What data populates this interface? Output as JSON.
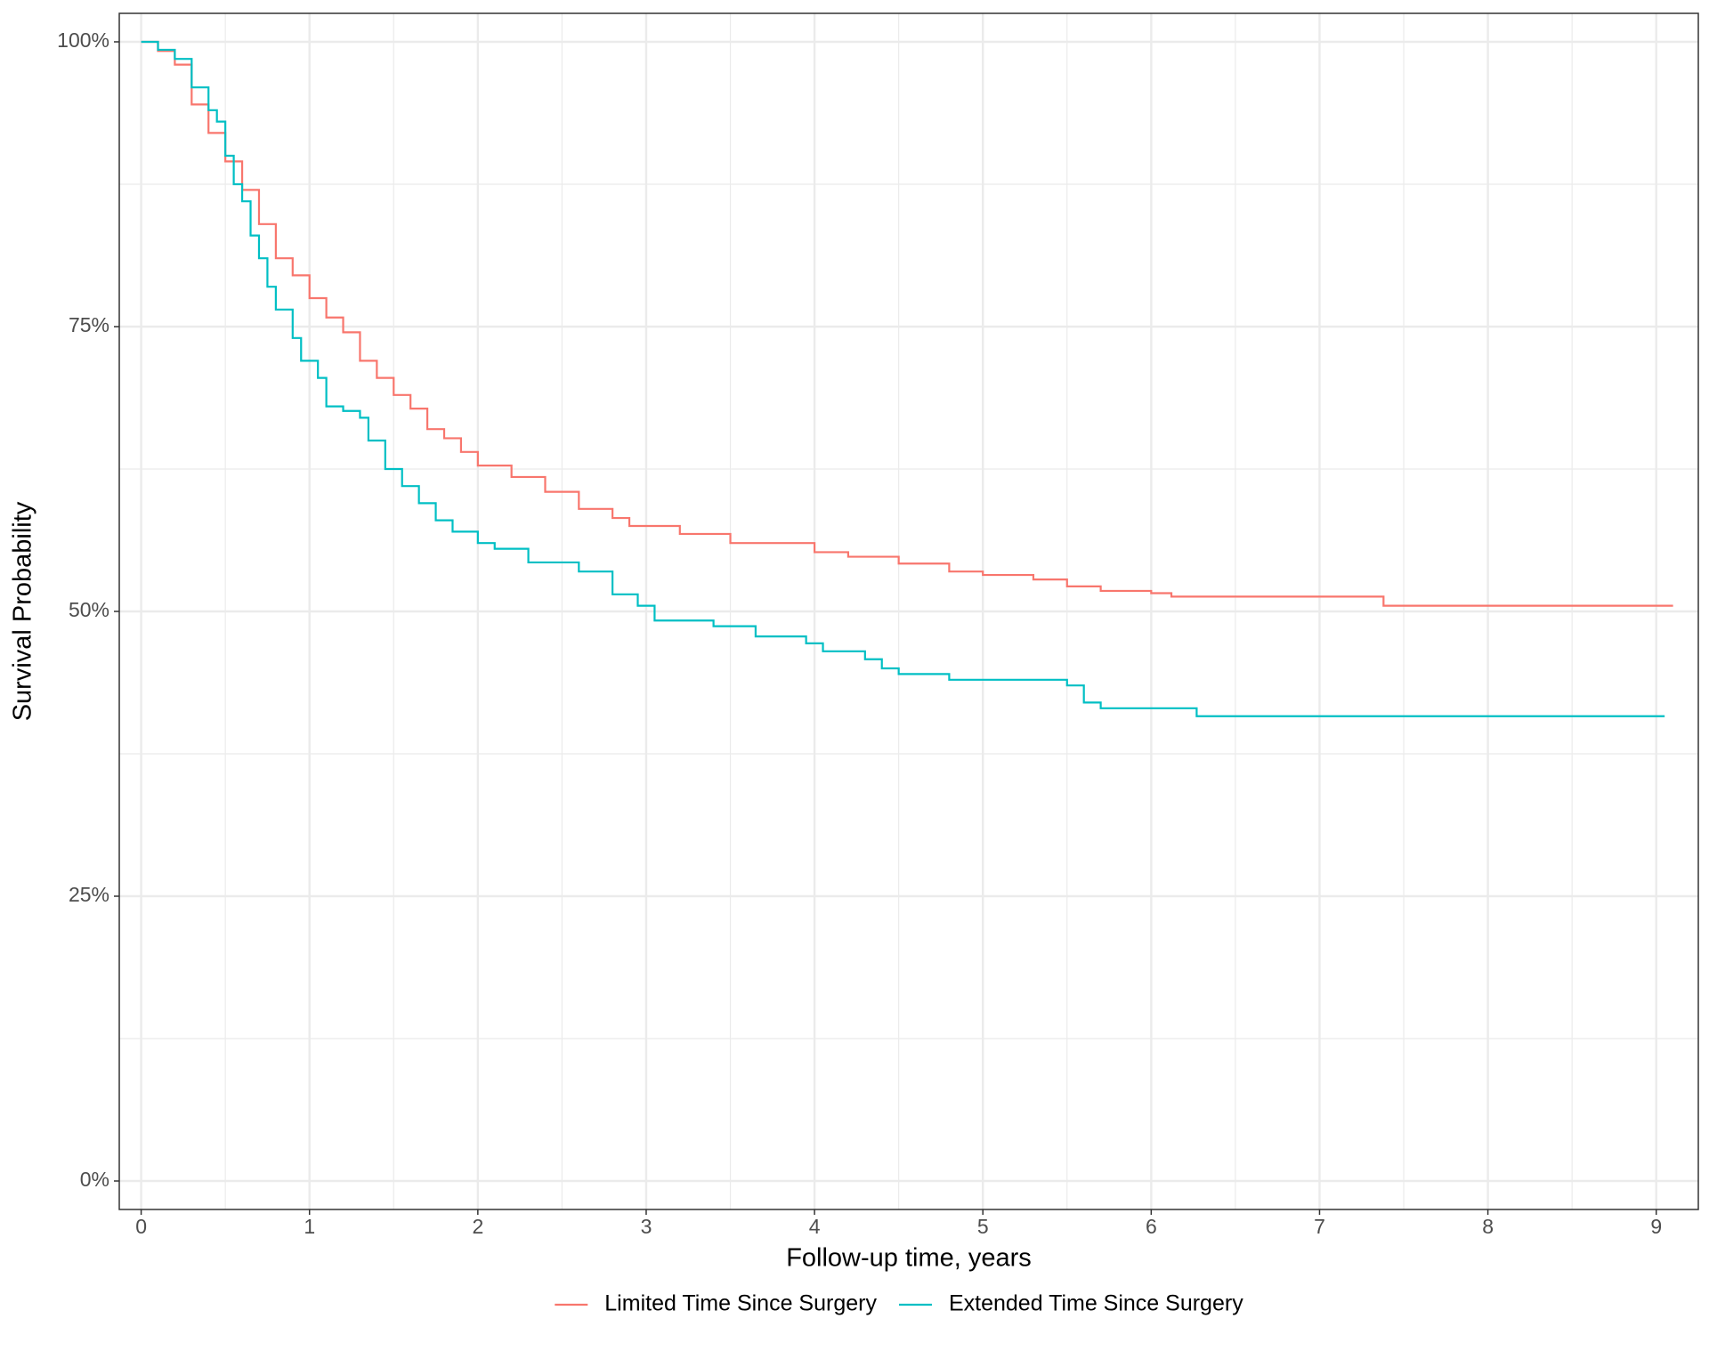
{
  "chart_data": {
    "type": "line",
    "step": "post",
    "grid": true,
    "x_label": "Follow-up time, years",
    "y_label": "Survival Probability",
    "xlim": [
      -0.13,
      9.25
    ],
    "xticks": [
      0,
      1,
      2,
      3,
      4,
      5,
      6,
      7,
      8,
      9
    ],
    "ylim": [
      -2.5,
      102.5
    ],
    "yticks": [
      {
        "value": 0,
        "label": "0%"
      },
      {
        "value": 25,
        "label": "25%"
      },
      {
        "value": 50,
        "label": "50%"
      },
      {
        "value": 75,
        "label": "75%"
      },
      {
        "value": 100,
        "label": "100%"
      }
    ],
    "legend": "bottom",
    "series": [
      {
        "name": "Limited Time Since Surgery",
        "color": "#f8766d",
        "x": [
          0,
          0.1,
          0.2,
          0.3,
          0.4,
          0.5,
          0.6,
          0.7,
          0.8,
          0.9,
          1.0,
          1.1,
          1.2,
          1.3,
          1.4,
          1.5,
          1.6,
          1.7,
          1.8,
          1.9,
          2.0,
          2.2,
          2.4,
          2.6,
          2.8,
          2.9,
          3.2,
          3.5,
          4.0,
          4.2,
          4.5,
          4.8,
          5.0,
          5.3,
          5.5,
          5.7,
          6.0,
          6.12,
          7.38,
          9.1
        ],
        "values": [
          100,
          99.2,
          98,
          94.5,
          92,
          89.5,
          87,
          84,
          81,
          79.5,
          77.5,
          75.8,
          74.5,
          72,
          70.5,
          69,
          67.8,
          66,
          65.2,
          64,
          62.8,
          61.8,
          60.5,
          59,
          58.2,
          57.5,
          56.8,
          56,
          55.2,
          54.8,
          54.2,
          53.5,
          53.2,
          52.8,
          52.2,
          51.8,
          51.6,
          51.3,
          50.5,
          50.5
        ]
      },
      {
        "name": "Extended Time Since Surgery",
        "color": "#00bfc4",
        "x": [
          0,
          0.1,
          0.2,
          0.3,
          0.4,
          0.45,
          0.5,
          0.55,
          0.6,
          0.65,
          0.7,
          0.75,
          0.8,
          0.9,
          0.95,
          1.05,
          1.1,
          1.2,
          1.3,
          1.35,
          1.45,
          1.55,
          1.65,
          1.75,
          1.85,
          2.0,
          2.1,
          2.3,
          2.6,
          2.8,
          2.95,
          3.05,
          3.4,
          3.65,
          3.95,
          4.05,
          4.3,
          4.4,
          4.5,
          4.8,
          5.5,
          5.6,
          5.7,
          6.27,
          9.05
        ],
        "values": [
          100,
          99.3,
          98.5,
          96,
          94,
          93,
          90,
          87.5,
          86,
          83,
          81,
          78.5,
          76.5,
          74,
          72,
          70.5,
          68,
          67.6,
          67,
          65,
          62.5,
          61,
          59.5,
          58,
          57,
          56,
          55.5,
          54.3,
          53.5,
          51.5,
          50.5,
          49.2,
          48.7,
          47.8,
          47.2,
          46.5,
          45.8,
          45,
          44.5,
          44,
          43.5,
          42,
          41.5,
          40.8,
          40.8
        ]
      }
    ]
  }
}
